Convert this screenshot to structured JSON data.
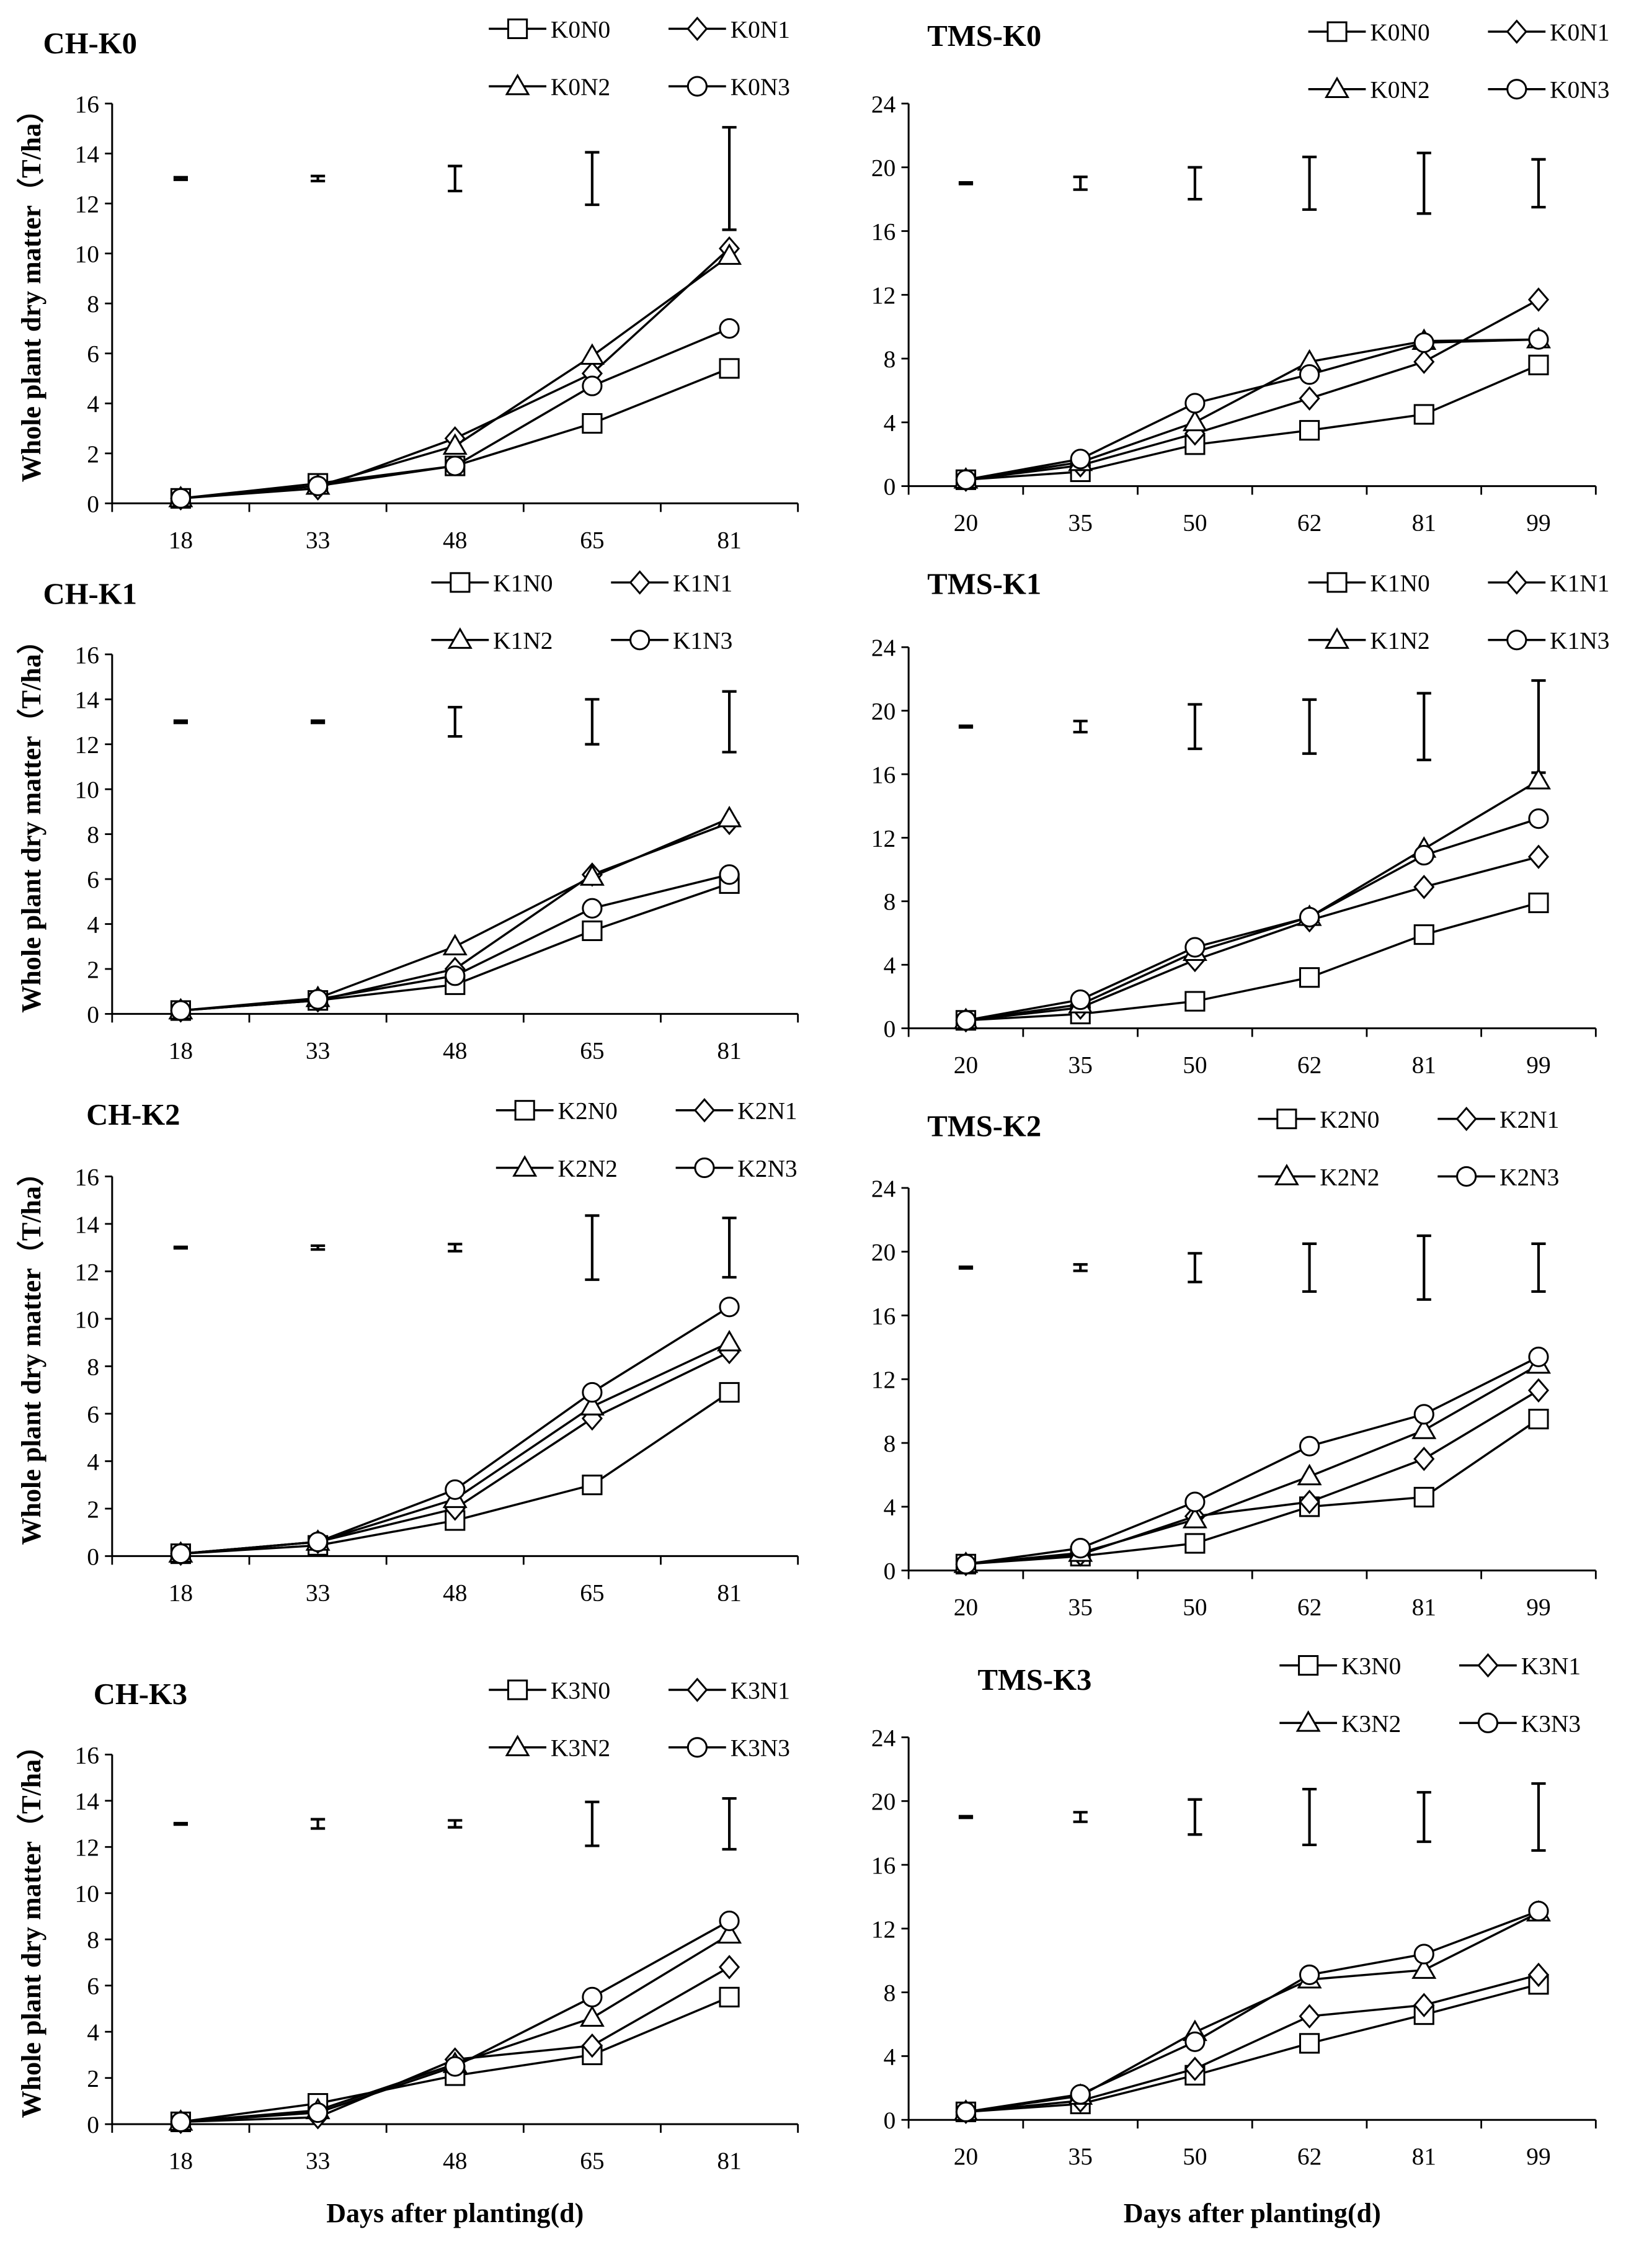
{
  "chart_data": [
    {
      "type": "line",
      "title": "CH-K0",
      "categories": [
        "18",
        "33",
        "48",
        "65",
        "81"
      ],
      "ylim": [
        0,
        16
      ],
      "yticks": [
        0,
        2,
        4,
        6,
        8,
        10,
        12,
        14,
        16
      ],
      "ylabel": "Whole plant dry matter（T/ha）",
      "xlabel": "",
      "error_bar_center": 13,
      "error_bar_halfwidth": [
        0.05,
        0.1,
        0.5,
        1.05,
        2.05
      ],
      "series": [
        {
          "name": "K0N0",
          "marker": "square",
          "values": [
            0.2,
            0.8,
            1.5,
            3.2,
            5.4
          ]
        },
        {
          "name": "K0N1",
          "marker": "diamond",
          "values": [
            0.2,
            0.6,
            2.6,
            5.2,
            10.2
          ]
        },
        {
          "name": "K0N2",
          "marker": "triangle",
          "values": [
            0.2,
            0.7,
            2.3,
            5.9,
            9.9
          ]
        },
        {
          "name": "K0N3",
          "marker": "circle",
          "values": [
            0.2,
            0.7,
            1.5,
            4.7,
            7.0
          ]
        }
      ]
    },
    {
      "type": "line",
      "title": "TMS-K0",
      "categories": [
        "20",
        "35",
        "50",
        "62",
        "81",
        "99"
      ],
      "ylim": [
        0,
        24
      ],
      "yticks": [
        0,
        4,
        8,
        12,
        16,
        20,
        24
      ],
      "ylabel": "",
      "xlabel": "",
      "error_bar_center": 19,
      "error_bar_halfwidth": [
        0.05,
        0.4,
        1.0,
        1.65,
        1.9,
        1.5
      ],
      "series": [
        {
          "name": "K0N0",
          "marker": "square",
          "values": [
            0.4,
            0.9,
            2.6,
            3.5,
            4.5,
            7.6
          ]
        },
        {
          "name": "K0N1",
          "marker": "diamond",
          "values": [
            0.4,
            1.3,
            3.3,
            5.5,
            7.8,
            11.7
          ]
        },
        {
          "name": "K0N2",
          "marker": "triangle",
          "values": [
            0.4,
            1.5,
            4.0,
            7.8,
            9.1,
            9.2
          ]
        },
        {
          "name": "K0N3",
          "marker": "circle",
          "values": [
            0.4,
            1.7,
            5.2,
            7.0,
            9.0,
            9.2
          ]
        }
      ]
    },
    {
      "type": "line",
      "title": "CH-K1",
      "categories": [
        "18",
        "33",
        "48",
        "65",
        "81"
      ],
      "ylim": [
        0,
        16
      ],
      "yticks": [
        0,
        2,
        4,
        6,
        8,
        10,
        12,
        14,
        16
      ],
      "ylabel": "Whole plant dry matter（T/ha）",
      "xlabel": "",
      "error_bar_center": 13,
      "error_bar_halfwidth": [
        0.05,
        0.05,
        0.65,
        1.0,
        1.35
      ],
      "series": [
        {
          "name": "K1N0",
          "marker": "square",
          "values": [
            0.15,
            0.6,
            1.3,
            3.7,
            5.8
          ]
        },
        {
          "name": "K1N1",
          "marker": "diamond",
          "values": [
            0.15,
            0.6,
            2.0,
            6.2,
            8.5
          ]
        },
        {
          "name": "K1N2",
          "marker": "triangle",
          "values": [
            0.15,
            0.7,
            3.0,
            6.1,
            8.7
          ]
        },
        {
          "name": "K1N3",
          "marker": "circle",
          "values": [
            0.15,
            0.65,
            1.7,
            4.7,
            6.2
          ]
        }
      ]
    },
    {
      "type": "line",
      "title": "TMS-K1",
      "categories": [
        "20",
        "35",
        "50",
        "62",
        "81",
        "99"
      ],
      "ylim": [
        0,
        24
      ],
      "yticks": [
        0,
        4,
        8,
        12,
        16,
        20,
        24
      ],
      "ylabel": "",
      "xlabel": "",
      "error_bar_center": 19,
      "error_bar_halfwidth": [
        0.05,
        0.35,
        1.4,
        1.7,
        2.1,
        2.9
      ],
      "series": [
        {
          "name": "K1N0",
          "marker": "square",
          "values": [
            0.5,
            0.9,
            1.7,
            3.2,
            5.9,
            7.9
          ]
        },
        {
          "name": "K1N1",
          "marker": "diamond",
          "values": [
            0.5,
            1.3,
            4.3,
            6.8,
            8.9,
            10.8
          ]
        },
        {
          "name": "K1N2",
          "marker": "triangle",
          "values": [
            0.5,
            1.5,
            4.8,
            7.0,
            11.3,
            15.6
          ]
        },
        {
          "name": "K1N3",
          "marker": "circle",
          "values": [
            0.5,
            1.8,
            5.1,
            7.0,
            10.9,
            13.2
          ]
        }
      ]
    },
    {
      "type": "line",
      "title": "CH-K2",
      "categories": [
        "18",
        "33",
        "48",
        "65",
        "81"
      ],
      "ylim": [
        0,
        16
      ],
      "yticks": [
        0,
        2,
        4,
        6,
        8,
        10,
        12,
        14,
        16
      ],
      "ylabel": "Whole plant dry matter（T/ha）",
      "xlabel": "",
      "error_bar_center": 13,
      "error_bar_halfwidth": [
        0.03,
        0.08,
        0.15,
        1.35,
        1.25
      ],
      "series": [
        {
          "name": "K2N0",
          "marker": "square",
          "values": [
            0.1,
            0.45,
            1.5,
            3.0,
            6.9
          ]
        },
        {
          "name": "K2N1",
          "marker": "diamond",
          "values": [
            0.1,
            0.6,
            2.0,
            5.8,
            8.6
          ]
        },
        {
          "name": "K2N2",
          "marker": "triangle",
          "values": [
            0.1,
            0.6,
            2.4,
            6.3,
            9.0
          ]
        },
        {
          "name": "K2N3",
          "marker": "circle",
          "values": [
            0.1,
            0.6,
            2.8,
            6.9,
            10.5
          ]
        }
      ]
    },
    {
      "type": "line",
      "title": "TMS-K2",
      "categories": [
        "20",
        "35",
        "50",
        "62",
        "81",
        "99"
      ],
      "ylim": [
        0,
        24
      ],
      "yticks": [
        0,
        4,
        8,
        12,
        16,
        20,
        24
      ],
      "ylabel": "",
      "xlabel": "",
      "error_bar_center": 19,
      "error_bar_halfwidth": [
        0.05,
        0.2,
        0.9,
        1.5,
        2.0,
        1.5
      ],
      "series": [
        {
          "name": "K2N0",
          "marker": "square",
          "values": [
            0.4,
            0.9,
            1.7,
            4.0,
            4.6,
            9.5
          ]
        },
        {
          "name": "K2N1",
          "marker": "diamond",
          "values": [
            0.4,
            1.0,
            3.4,
            4.3,
            7.0,
            11.3
          ]
        },
        {
          "name": "K2N2",
          "marker": "triangle",
          "values": [
            0.4,
            1.1,
            3.2,
            5.9,
            8.8,
            12.9
          ]
        },
        {
          "name": "K2N3",
          "marker": "circle",
          "values": [
            0.4,
            1.4,
            4.3,
            7.8,
            9.8,
            13.4
          ]
        }
      ]
    },
    {
      "type": "line",
      "title": "CH-K3",
      "categories": [
        "18",
        "33",
        "48",
        "65",
        "81"
      ],
      "ylim": [
        0,
        16
      ],
      "yticks": [
        0,
        2,
        4,
        6,
        8,
        10,
        12,
        14,
        16
      ],
      "ylabel": "Whole plant dry matter（T/ha）",
      "xlabel": "Days after planting(d)",
      "error_bar_center": 13,
      "error_bar_halfwidth": [
        0.03,
        0.2,
        0.15,
        0.95,
        1.1
      ],
      "series": [
        {
          "name": "K3N0",
          "marker": "square",
          "values": [
            0.1,
            0.9,
            2.1,
            3.0,
            5.5
          ]
        },
        {
          "name": "K3N1",
          "marker": "diamond",
          "values": [
            0.1,
            0.3,
            2.8,
            3.4,
            6.8
          ]
        },
        {
          "name": "K3N2",
          "marker": "triangle",
          "values": [
            0.1,
            0.6,
            2.6,
            4.6,
            8.2
          ]
        },
        {
          "name": "K3N3",
          "marker": "circle",
          "values": [
            0.1,
            0.5,
            2.5,
            5.5,
            8.8
          ]
        }
      ]
    },
    {
      "type": "line",
      "title": "TMS-K3",
      "categories": [
        "20",
        "35",
        "50",
        "62",
        "81",
        "99"
      ],
      "ylim": [
        0,
        24
      ],
      "yticks": [
        0,
        4,
        8,
        12,
        16,
        20,
        24
      ],
      "ylabel": "",
      "xlabel": "Days after planting(d)",
      "error_bar_center": 19,
      "error_bar_halfwidth": [
        0.05,
        0.3,
        1.1,
        1.75,
        1.55,
        2.1
      ],
      "series": [
        {
          "name": "K3N0",
          "marker": "square",
          "values": [
            0.5,
            1.0,
            2.8,
            4.8,
            6.6,
            8.5
          ]
        },
        {
          "name": "K3N1",
          "marker": "diamond",
          "values": [
            0.5,
            1.2,
            3.2,
            6.5,
            7.2,
            9.1
          ]
        },
        {
          "name": "K3N2",
          "marker": "triangle",
          "values": [
            0.5,
            1.5,
            5.5,
            8.8,
            9.4,
            13.0
          ]
        },
        {
          "name": "K3N3",
          "marker": "circle",
          "values": [
            0.5,
            1.6,
            4.9,
            9.1,
            10.4,
            13.1
          ]
        }
      ]
    }
  ]
}
